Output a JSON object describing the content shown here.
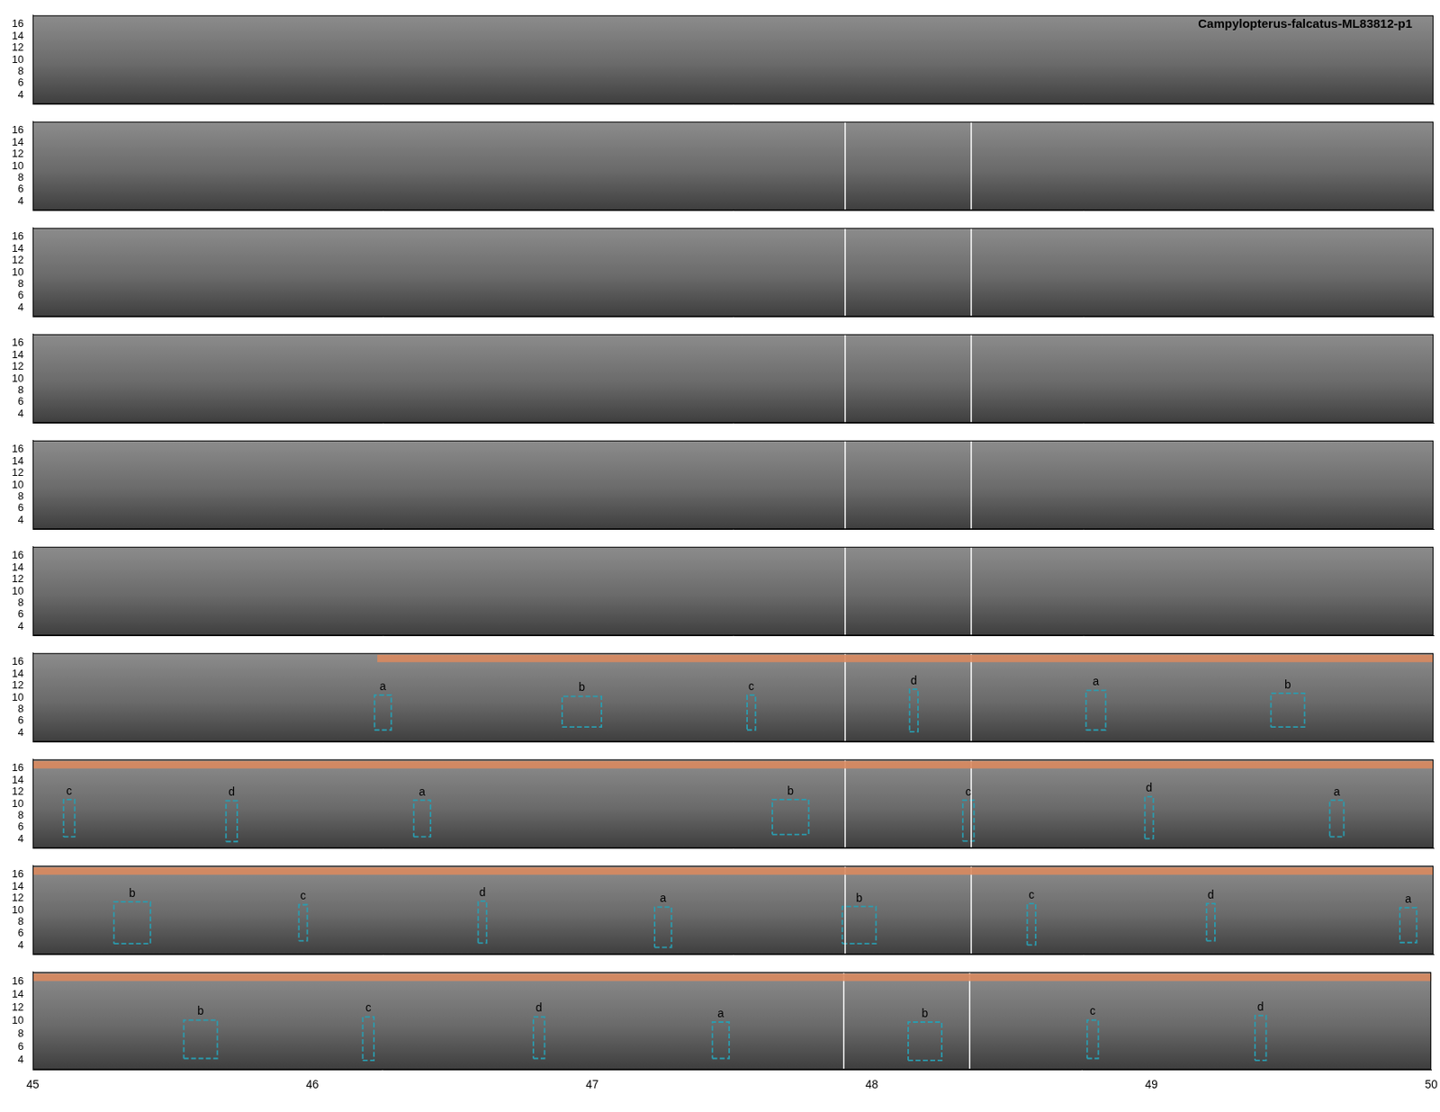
{
  "chart_data": {
    "type": "spectrogram",
    "title": "Campylopterus-falcatus-ML83812-p1",
    "xlim": [
      45,
      50
    ],
    "xticks": [
      45,
      46,
      47,
      48,
      49,
      50
    ],
    "ylim": [
      2.5,
      17.5
    ],
    "yticks": [
      4,
      6,
      8,
      10,
      12,
      14,
      16
    ],
    "box_color": "#2a9db0",
    "selection_color": "#d9895f",
    "rows": [
      {
        "vlines": [],
        "selection": null,
        "boxes": []
      },
      {
        "vlines": [
          47.9,
          48.35
        ],
        "selection": null,
        "boxes": []
      },
      {
        "vlines": [
          47.9,
          48.35
        ],
        "selection": null,
        "boxes": []
      },
      {
        "vlines": [
          47.9,
          48.35
        ],
        "selection": null,
        "boxes": []
      },
      {
        "vlines": [
          47.9,
          48.35
        ],
        "selection": null,
        "boxes": []
      },
      {
        "vlines": [
          47.9,
          48.35
        ],
        "selection": null,
        "boxes": []
      },
      {
        "vlines": [
          47.9,
          48.35
        ],
        "selection": [
          46.23,
          50
        ],
        "boxes": [
          {
            "label": "a",
            "x": [
              46.22,
              46.28
            ],
            "y": [
              4.5,
              10.4
            ]
          },
          {
            "label": "b",
            "x": [
              46.89,
              47.03
            ],
            "y": [
              5.0,
              10.2
            ]
          },
          {
            "label": "c",
            "x": [
              47.55,
              47.58
            ],
            "y": [
              4.5,
              10.4
            ]
          },
          {
            "label": "d",
            "x": [
              48.13,
              48.16
            ],
            "y": [
              4.2,
              11.4
            ]
          },
          {
            "label": "a",
            "x": [
              48.76,
              48.83
            ],
            "y": [
              4.5,
              11.2
            ]
          },
          {
            "label": "b",
            "x": [
              49.42,
              49.54
            ],
            "y": [
              5.0,
              10.7
            ]
          }
        ]
      },
      {
        "vlines": [
          47.9,
          48.35
        ],
        "selection": [
          45,
          50
        ],
        "boxes": [
          {
            "label": "c",
            "x": [
              45.11,
              45.15
            ],
            "y": [
              4.4,
              10.7
            ]
          },
          {
            "label": "d",
            "x": [
              45.69,
              45.73
            ],
            "y": [
              3.6,
              10.5
            ]
          },
          {
            "label": "a",
            "x": [
              46.36,
              46.42
            ],
            "y": [
              4.4,
              10.6
            ]
          },
          {
            "label": "b",
            "x": [
              47.64,
              47.77
            ],
            "y": [
              4.8,
              10.7
            ]
          },
          {
            "label": "c",
            "x": [
              48.32,
              48.36
            ],
            "y": [
              3.7,
              10.6
            ]
          },
          {
            "label": "d",
            "x": [
              48.97,
              49.0
            ],
            "y": [
              4.1,
              11.2
            ]
          },
          {
            "label": "a",
            "x": [
              49.63,
              49.68
            ],
            "y": [
              4.4,
              10.6
            ]
          }
        ]
      },
      {
        "vlines": [
          47.9,
          48.35
        ],
        "selection": [
          45,
          50
        ],
        "boxes": [
          {
            "label": "b",
            "x": [
              45.29,
              45.42
            ],
            "y": [
              4.3,
              11.4
            ]
          },
          {
            "label": "c",
            "x": [
              45.95,
              45.98
            ],
            "y": [
              4.8,
              10.9
            ]
          },
          {
            "label": "d",
            "x": [
              46.59,
              46.62
            ],
            "y": [
              4.4,
              11.5
            ]
          },
          {
            "label": "a",
            "x": [
              47.22,
              47.28
            ],
            "y": [
              3.7,
              10.5
            ]
          },
          {
            "label": "b",
            "x": [
              47.89,
              48.01
            ],
            "y": [
              4.3,
              10.6
            ]
          },
          {
            "label": "c",
            "x": [
              48.55,
              48.58
            ],
            "y": [
              4.1,
              11.1
            ]
          },
          {
            "label": "d",
            "x": [
              49.19,
              49.22
            ],
            "y": [
              4.8,
              11.1
            ]
          },
          {
            "label": "a",
            "x": [
              49.88,
              49.94
            ],
            "y": [
              4.5,
              10.4
            ]
          }
        ]
      },
      {
        "vlines": [
          47.9,
          48.35
        ],
        "selection": [
          45,
          50
        ],
        "boxes": [
          {
            "label": "b",
            "x": [
              45.54,
              45.66
            ],
            "y": [
              4.2,
              10.1
            ]
          },
          {
            "label": "c",
            "x": [
              46.18,
              46.22
            ],
            "y": [
              3.9,
              10.6
            ]
          },
          {
            "label": "d",
            "x": [
              46.79,
              46.83
            ],
            "y": [
              4.2,
              10.6
            ]
          },
          {
            "label": "a",
            "x": [
              47.43,
              47.49
            ],
            "y": [
              4.2,
              9.8
            ]
          },
          {
            "label": "b",
            "x": [
              48.13,
              48.25
            ],
            "y": [
              3.9,
              9.8
            ]
          },
          {
            "label": "c",
            "x": [
              48.77,
              48.81
            ],
            "y": [
              4.2,
              10.1
            ]
          },
          {
            "label": "d",
            "x": [
              49.37,
              49.41
            ],
            "y": [
              3.9,
              10.8
            ]
          }
        ]
      }
    ]
  }
}
